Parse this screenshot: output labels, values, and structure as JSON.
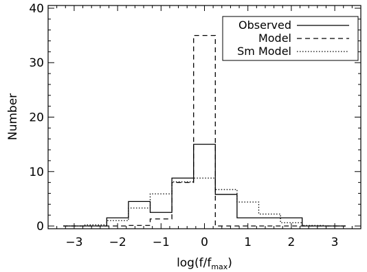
{
  "chart_data": {
    "type": "histogram",
    "xlabel": "log(f/f",
    "xlabel_sub": "max",
    "xlabel_close": ")",
    "ylabel": "Number",
    "xlim": [
      -3.6,
      3.6
    ],
    "ylim": [
      -0.5,
      40.5
    ],
    "x_ticks": [
      -3,
      -2,
      -1,
      0,
      1,
      2,
      3
    ],
    "x_tick_labels": [
      "−3",
      "−2",
      "−1",
      "0",
      "1",
      "2",
      "3"
    ],
    "y_ticks": [
      0,
      10,
      20,
      30,
      40
    ],
    "y_tick_labels": [
      "0",
      "10",
      "20",
      "30",
      "40"
    ],
    "bin_edges": [
      -3.25,
      -2.75,
      -2.25,
      -1.75,
      -1.25,
      -0.75,
      -0.25,
      0.25,
      0.75,
      1.25,
      1.75,
      2.25,
      2.75,
      3.25
    ],
    "series": [
      {
        "name": "Observed",
        "style": "solid",
        "values": [
          0,
          0,
          1.5,
          4.5,
          2.5,
          8.8,
          15,
          5.8,
          1.5,
          1.5,
          1.5,
          0,
          0
        ]
      },
      {
        "name": "Model",
        "style": "dashed",
        "values": [
          0,
          0,
          0,
          0.1,
          1.3,
          8.0,
          35,
          0,
          0,
          0,
          0,
          0,
          0
        ]
      },
      {
        "name": "Sm Model",
        "style": "dotted",
        "values": [
          0,
          0.2,
          1.0,
          3.3,
          5.9,
          8.1,
          8.8,
          6.7,
          4.4,
          2.2,
          0.6,
          0.1,
          0
        ]
      }
    ],
    "legend": {
      "position": "top-right",
      "entries": [
        "Observed",
        "Model",
        "Sm Model"
      ]
    },
    "grid": false
  }
}
